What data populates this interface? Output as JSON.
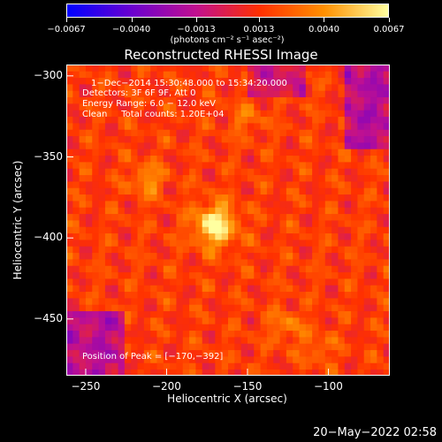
{
  "colorbar": {
    "ticks": [
      "−0.0067",
      "−0.0040",
      "−0.0013",
      "0.0013",
      "0.0040",
      "0.0067"
    ],
    "tick_values": [
      -0.0067,
      -0.004,
      -0.0013,
      0.0013,
      0.004,
      0.0067
    ],
    "units": "(photons cm⁻² s⁻¹ asec⁻²)",
    "colors": [
      "#0000ff",
      "#6a00d0",
      "#c01090",
      "#ff3000",
      "#ff9000",
      "#ffffa0"
    ]
  },
  "chart_data": {
    "type": "heatmap",
    "title": "Reconstructed RHESSI Image",
    "xlabel": "Heliocentric X (arcsec)",
    "ylabel": "Heliocentric Y (arcsec)",
    "xlim": [
      -262,
      -62
    ],
    "ylim": [
      -485,
      -293
    ],
    "x_ticks": [
      "−250",
      "−200",
      "−150",
      "−100"
    ],
    "x_tick_values": [
      -250,
      -200,
      -150,
      -100
    ],
    "y_ticks": [
      "−300",
      "−350",
      "−400",
      "−450"
    ],
    "y_tick_values": [
      -300,
      -350,
      -400,
      -450
    ],
    "peak": {
      "x": -170,
      "y": -392,
      "value": 0.0067
    },
    "secondary_sources": [
      {
        "x": -212,
        "y": -364,
        "value": 0.004
      },
      {
        "x": -150,
        "y": -326,
        "value": 0.003
      },
      {
        "x": -126,
        "y": -454,
        "value": 0.0035
      },
      {
        "x": -106,
        "y": -468,
        "value": 0.003
      }
    ],
    "annotations": [
      "1−Dec−2014 15:30:48.000 to 15:34:20.000",
      "Detectors: 3F 6F 9F, Att 0",
      "Energy Range: 6.0 − 12.0 keV",
      "Clean     Total counts: 1.20E+04"
    ],
    "peak_label": "Position of Peak = [−170,−392]"
  },
  "timestamp": "20−May−2022 02:58"
}
